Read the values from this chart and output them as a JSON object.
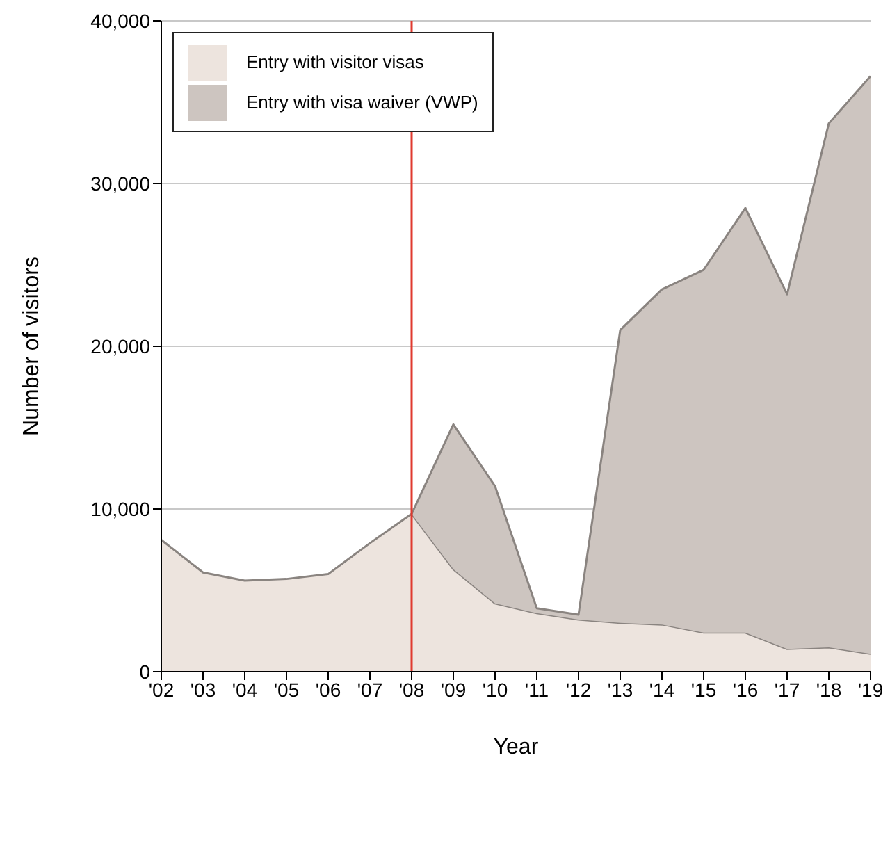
{
  "chart_data": {
    "type": "area",
    "stacked": true,
    "xlabel": "Year",
    "ylabel": "Number of visitors",
    "categories": [
      "'02",
      "'03",
      "'04",
      "'05",
      "'06",
      "'07",
      "'08",
      "'09",
      "'10",
      "'11",
      "'12",
      "'13",
      "'14",
      "'15",
      "'16",
      "'17",
      "'18",
      "'19"
    ],
    "series": [
      {
        "name": "Entry with visitor visas",
        "color": "#ede4de",
        "values": [
          8100,
          6100,
          5600,
          5700,
          6000,
          7900,
          9700,
          6300,
          4200,
          3600,
          3200,
          3000,
          2900,
          2400,
          2400,
          1400,
          1500,
          1100
        ]
      },
      {
        "name": "Entry with visa waiver (VWP)",
        "color": "#cdc5c0",
        "values": [
          null,
          null,
          null,
          null,
          null,
          null,
          0,
          8900,
          7200,
          300,
          300,
          18000,
          20600,
          22300,
          26100,
          21800,
          32200,
          35500
        ]
      }
    ],
    "ylim": [
      0,
      40000
    ],
    "yticks": [
      0,
      {
        "value": 10000,
        "label": "10,000"
      },
      {
        "value": 20000,
        "label": "20,000"
      },
      {
        "value": 30000,
        "label": "30,000"
      },
      {
        "value": 40000,
        "label": "40,000"
      }
    ],
    "grid": "y",
    "legend": "top left",
    "ref_lines": [
      {
        "axis": "x",
        "value": "'08",
        "color": "#e03a2f"
      }
    ]
  }
}
